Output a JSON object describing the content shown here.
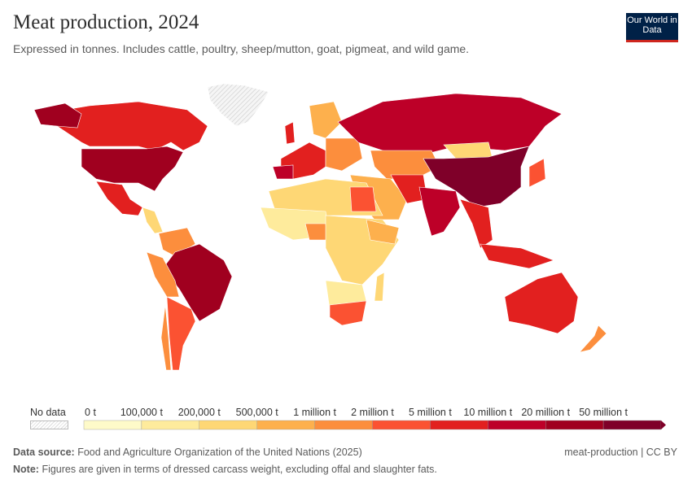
{
  "header": {
    "title": "Meat production, 2024",
    "subtitle": "Expressed in tonnes. Includes cattle, poultry, sheep/mutton, goat, pigmeat, and wild game.",
    "logo_text": "Our World in Data"
  },
  "legend": {
    "no_data_label": "No data",
    "labels": [
      "0 t",
      "100,000 t",
      "200,000 t",
      "500,000 t",
      "1 million t",
      "2 million t",
      "5 million t",
      "10 million t",
      "20 million t",
      "50 million t"
    ],
    "colors": [
      "#fefac9",
      "#feeb9c",
      "#fed775",
      "#fdb04d",
      "#fc8e3d",
      "#fb5232",
      "#e2201f",
      "#bd0028",
      "#a0001f",
      "#7f0029"
    ]
  },
  "map": {
    "no_data_color": "#eeeeee"
  },
  "footer": {
    "source_label": "Data source:",
    "source_text": "Food and Agriculture Organization of the United Nations (2025)",
    "note_label": "Note:",
    "note_text": "Figures are given in terms of dressed carcass weight, excluding offal and slaughter fats.",
    "license": "meat-production | CC BY"
  }
}
